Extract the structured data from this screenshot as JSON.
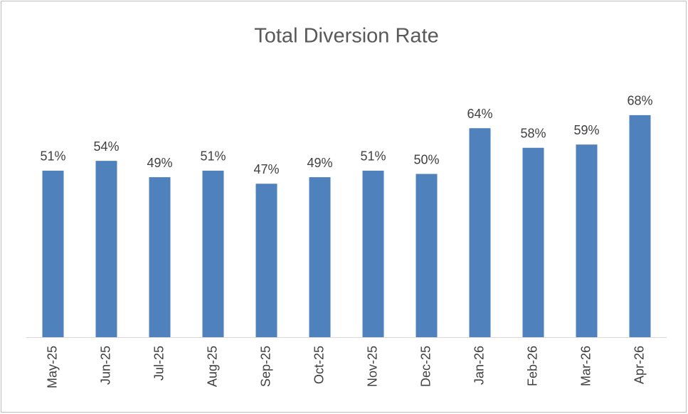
{
  "chart_data": {
    "type": "bar",
    "title": "Total Diversion Rate",
    "categories": [
      "May-25",
      "Jun-25",
      "Jul-25",
      "Aug-25",
      "Sep-25",
      "Oct-25",
      "Nov-25",
      "Dec-25",
      "Jan-26",
      "Feb-26",
      "Mar-26",
      "Apr-26"
    ],
    "values": [
      51,
      54,
      49,
      51,
      47,
      49,
      51,
      50,
      64,
      58,
      59,
      68
    ],
    "value_labels": [
      "51%",
      "54%",
      "49%",
      "51%",
      "47%",
      "49%",
      "51%",
      "50%",
      "64%",
      "58%",
      "59%",
      "68%"
    ],
    "color": "#4f81bd"
  }
}
